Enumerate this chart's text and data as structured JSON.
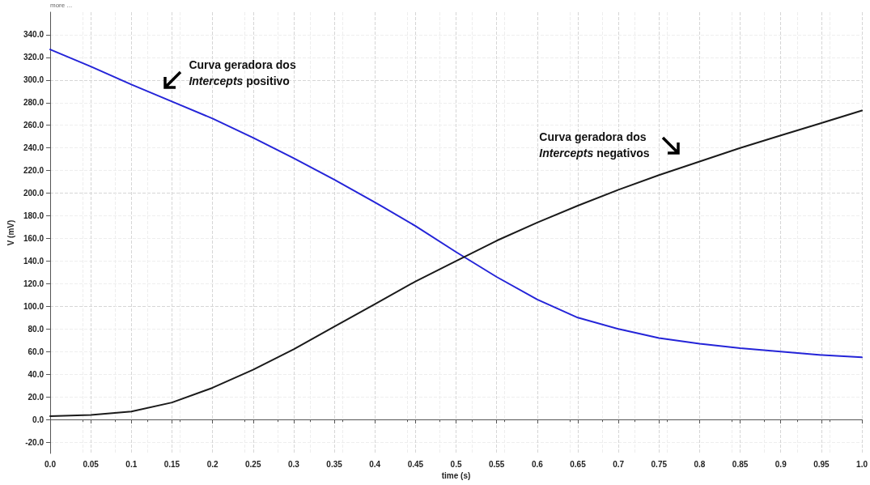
{
  "chart_data": {
    "type": "line",
    "xlabel": "time (s)",
    "ylabel": "V (mV)",
    "x": [
      0,
      0.05,
      0.1,
      0.15,
      0.2,
      0.25,
      0.3,
      0.35,
      0.4,
      0.45,
      0.5,
      0.55,
      0.6,
      0.65,
      0.7,
      0.75,
      0.8,
      0.85,
      0.9,
      0.95,
      1.0
    ],
    "series": [
      {
        "color": "#2424d8",
        "values": [
          327,
          312,
          296,
          281,
          266,
          249,
          231,
          212,
          192,
          171,
          148,
          126,
          106,
          90,
          80,
          72,
          67,
          63,
          60,
          57,
          55
        ]
      },
      {
        "color": "#1a1a1a",
        "values": [
          3,
          4,
          7,
          15,
          28,
          44,
          62,
          82,
          102,
          122,
          140,
          158,
          174,
          189,
          203,
          216,
          228,
          240,
          251,
          262,
          273
        ]
      }
    ],
    "xlim": [
      0,
      1.0
    ],
    "ylim": [
      -30,
      360
    ],
    "xticks": [
      {
        "value": 0,
        "label": "0.0"
      },
      0.05,
      0.1,
      0.15,
      0.2,
      0.25,
      0.3,
      0.35,
      0.4,
      0.45,
      0.5,
      0.55,
      0.6,
      0.65,
      0.7,
      0.75,
      0.8,
      0.85,
      0.9,
      0.95,
      {
        "value": 1,
        "label": "1.0"
      }
    ],
    "yticks": [
      {
        "value": -20,
        "label": "-20.0"
      },
      {
        "value": 0,
        "label": "0.0"
      },
      {
        "value": 20,
        "label": "20.0"
      },
      {
        "value": 40,
        "label": "40.0"
      },
      {
        "value": 60,
        "label": "60.0"
      },
      {
        "value": 80,
        "label": "80.0"
      },
      {
        "value": 100,
        "label": "100.0"
      },
      {
        "value": 120,
        "label": "120.0"
      },
      {
        "value": 140,
        "label": "140.0"
      },
      {
        "value": 160,
        "label": "160.0"
      },
      {
        "value": 180,
        "label": "180.0"
      },
      {
        "value": 200,
        "label": "200.0"
      },
      {
        "value": 220,
        "label": "220.0"
      },
      {
        "value": 240,
        "label": "240.0"
      },
      {
        "value": 260,
        "label": "260.0"
      },
      {
        "value": 280,
        "label": "280.0"
      },
      {
        "value": 300,
        "label": "300.0"
      },
      {
        "value": 320,
        "label": "320.0"
      },
      {
        "value": 340,
        "label": "340.0"
      }
    ],
    "grid": true,
    "marker": "none",
    "line_style": "solid",
    "annotations": [
      "more ...",
      "Curva geradora dos Intercepts positivo",
      "Curva geradora dos Intercepts negativos"
    ]
  }
}
